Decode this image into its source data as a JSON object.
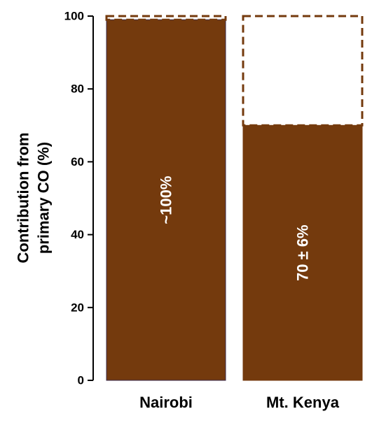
{
  "chart_data": {
    "type": "bar",
    "title": "",
    "xlabel": "",
    "ylabel_lines": [
      "Contribution from",
      "primary CO (%)"
    ],
    "ylim": [
      0,
      100
    ],
    "yticks": [
      0,
      20,
      40,
      60,
      80,
      100
    ],
    "ytick_labels": [
      "0",
      "20",
      "40",
      "60",
      "80",
      "100"
    ],
    "grid": false,
    "legend": "none",
    "categories": [
      "Nairobi",
      "Mt. Kenya"
    ],
    "values": [
      99,
      70
    ],
    "reference_values": [
      100,
      100
    ],
    "value_labels": [
      "~100%",
      "70 ± 6%"
    ],
    "colors": {
      "bar_fill": "#743a0d",
      "dashed_outline": "#743a0d",
      "axis": "#000000",
      "value_label": "#ffffff"
    }
  }
}
